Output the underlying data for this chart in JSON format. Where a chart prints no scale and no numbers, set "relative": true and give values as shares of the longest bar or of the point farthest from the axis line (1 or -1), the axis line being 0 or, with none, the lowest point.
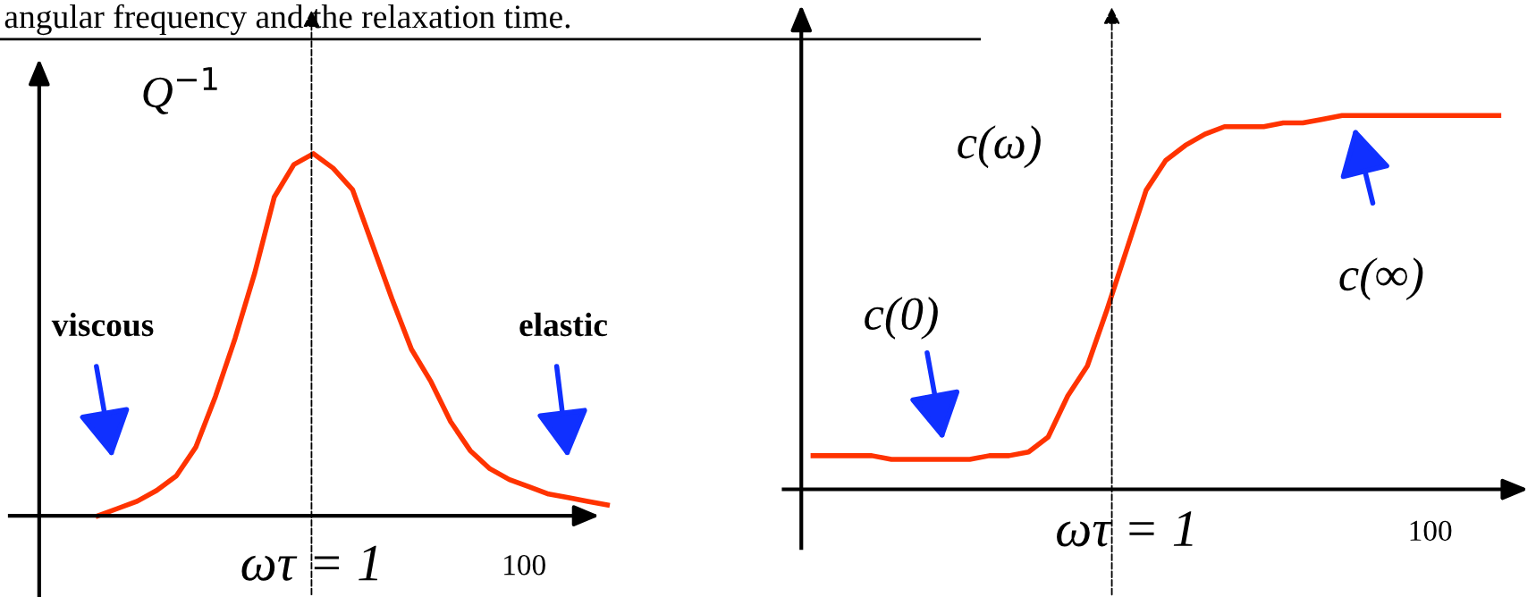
{
  "chart_data": [
    {
      "type": "line",
      "title": "angular frequency and the relaxation time.",
      "relative": true,
      "categories": [
        null,
        null,
        null,
        null,
        null,
        null,
        null,
        null,
        null,
        null,
        null,
        null,
        null,
        null,
        null,
        null,
        null,
        null,
        null,
        null,
        null,
        null,
        null,
        null,
        null,
        null,
        null
      ],
      "series": [
        {
          "color": "#ff3300",
          "values": [
            0,
            0.02,
            0.04,
            0.07,
            0.11,
            0.19,
            0.33,
            0.49,
            0.67,
            0.88,
            0.97,
            1.0,
            0.96,
            0.9,
            0.75,
            0.6,
            0.46,
            0.37,
            0.26,
            0.18,
            0.13,
            0.1,
            0.08,
            0.06,
            0.05,
            0.04,
            0.03
          ]
        }
      ],
      "annotations": [
        "Q$^{−1}$",
        "viscous",
        "elastic",
        "100",
        "ωτ = 1"
      ]
    },
    {
      "type": "line",
      "relative": true,
      "categories": [
        null,
        null,
        null,
        null,
        null,
        null,
        null,
        null,
        null,
        null,
        null,
        null,
        null,
        null,
        null,
        null,
        null,
        null,
        null,
        null,
        null,
        null,
        null,
        null,
        null,
        null,
        null,
        null,
        null,
        null,
        null,
        null,
        null,
        null,
        null,
        null
      ],
      "series": [
        {
          "color": "#ff3300",
          "values": [
            0.09,
            0.09,
            0.09,
            0.09,
            0.08,
            0.08,
            0.08,
            0.08,
            0.08,
            0.09,
            0.09,
            0.1,
            0.14,
            0.25,
            0.33,
            0.48,
            0.64,
            0.8,
            0.88,
            0.92,
            0.95,
            0.97,
            0.97,
            0.97,
            0.98,
            0.98,
            0.99,
            1.0,
            1.0,
            1.0,
            1.0,
            1.0,
            1.0,
            1.0,
            1.0,
            1.0
          ]
        }
      ],
      "annotations": [
        "c(ω)",
        "c(0)",
        "c(∞)",
        "100",
        "ωτ = 1"
      ]
    }
  ]
}
